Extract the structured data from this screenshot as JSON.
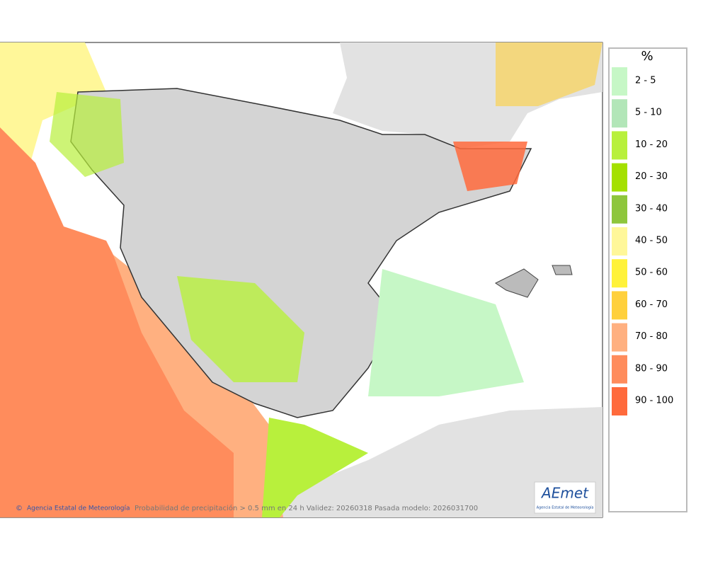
{
  "legend": {
    "title": "%",
    "items": [
      {
        "label": "2 - 5",
        "color": "#c6f7c6"
      },
      {
        "label": "5 - 10",
        "color": "#b2e6b8"
      },
      {
        "label": "10 - 20",
        "color": "#b8f03c"
      },
      {
        "label": "20 - 30",
        "color": "#a4e000"
      },
      {
        "label": "30 - 40",
        "color": "#8ec63c"
      },
      {
        "label": "40 - 50",
        "color": "#fff799"
      },
      {
        "label": "50 - 60",
        "color": "#fff23a"
      },
      {
        "label": "60 - 70",
        "color": "#ffd03c"
      },
      {
        "label": "70 - 80",
        "color": "#ffb080"
      },
      {
        "label": "80 - 90",
        "color": "#ff8c5c"
      },
      {
        "label": "90 - 100",
        "color": "#ff6a3c"
      }
    ]
  },
  "footer": {
    "credit": "Agencia Estatal de Meteorología",
    "caption": "Probabilidad de precipitación > 0.5 mm en 24 h Validez: 20260318 Pasada modelo: 2026031700"
  },
  "logo": {
    "text": "AEmet",
    "subtitle": "Agencia Estatal de Meteorología"
  }
}
